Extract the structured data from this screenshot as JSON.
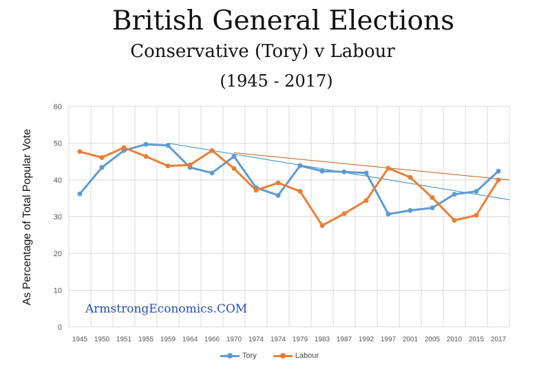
{
  "chart_data": {
    "type": "line",
    "title": "British General Elections",
    "subtitle": "Conservative (Tory) v Labour",
    "date_range": "(1945 - 2017)",
    "ylabel": "As Percentage of Total Popular Vote",
    "xlabel": "",
    "watermark": "ArmstrongEconomics.COM",
    "ylim": [
      0,
      60
    ],
    "yticks": [
      0,
      10,
      20,
      30,
      40,
      50,
      60
    ],
    "grid": true,
    "legend_position": "bottom",
    "categories": [
      "1945",
      "1950",
      "1951",
      "1955",
      "1959",
      "1964",
      "1966",
      "1970",
      "1974",
      "1974",
      "1979",
      "1983",
      "1987",
      "1992",
      "1997",
      "2001",
      "2005",
      "2010",
      "2015",
      "2017"
    ],
    "series": [
      {
        "name": "Tory",
        "color": "#5b9bd5",
        "values": [
          36.2,
          43.4,
          48.0,
          49.7,
          49.4,
          43.4,
          41.9,
          46.4,
          37.9,
          35.8,
          43.9,
          42.4,
          42.2,
          41.9,
          30.7,
          31.7,
          32.4,
          36.1,
          36.9,
          42.4
        ]
      },
      {
        "name": "Labour",
        "color": "#ed7d31",
        "values": [
          47.7,
          46.1,
          48.8,
          46.4,
          43.8,
          44.1,
          48.0,
          43.1,
          37.2,
          39.2,
          36.9,
          27.6,
          30.8,
          34.4,
          43.2,
          40.7,
          35.2,
          29.0,
          30.4,
          40.0
        ]
      }
    ],
    "trendlines": [
      {
        "series": "Tory",
        "color": "#2e8bc0",
        "from": {
          "category_index": 4,
          "value": 50.0
        },
        "to": {
          "category_index": 19,
          "value": 34.6
        }
      },
      {
        "series": "Labour",
        "color": "#c55a11",
        "from": {
          "category_index": 7,
          "value": 47.4
        },
        "to": {
          "category_index": 19,
          "value": 40.0
        }
      }
    ]
  }
}
